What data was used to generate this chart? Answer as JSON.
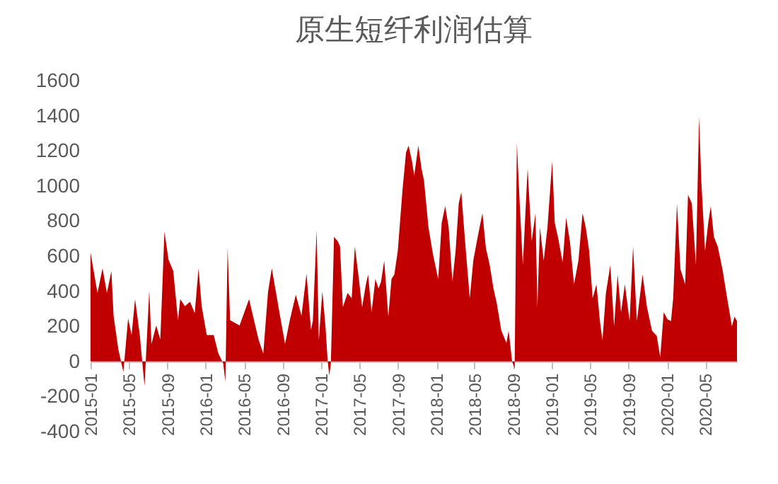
{
  "chart_data": {
    "type": "area",
    "title": "原生短纤利润估算",
    "x": [
      "2015-01-01",
      "2015-01-23",
      "2015-02-08",
      "2015-02-22",
      "2015-03-08",
      "2015-03-15",
      "2015-03-30",
      "2015-04-15",
      "2015-04-30",
      "2015-05-11",
      "2015-05-22",
      "2015-06-06",
      "2015-06-21",
      "2015-07-06",
      "2015-07-13",
      "2015-07-28",
      "2015-08-10",
      "2015-08-23",
      "2015-09-05",
      "2015-09-20",
      "2015-10-05",
      "2015-10-12",
      "2015-10-27",
      "2015-11-12",
      "2015-11-27",
      "2015-12-09",
      "2015-12-19",
      "2016-01-04",
      "2016-01-26",
      "2016-02-10",
      "2016-02-25",
      "2016-03-03",
      "2016-03-10",
      "2016-03-18",
      "2016-04-17",
      "2016-05-17",
      "2016-06-16",
      "2016-07-01",
      "2016-07-16",
      "2016-07-28",
      "2016-08-23",
      "2016-09-08",
      "2016-09-23",
      "2016-10-12",
      "2016-10-30",
      "2016-11-15",
      "2016-11-29",
      "2016-12-05",
      "2016-12-17",
      "2016-12-24",
      "2017-01-04",
      "2017-01-14",
      "2017-01-21",
      "2017-01-26",
      "2017-01-31",
      "2017-02-10",
      "2017-02-22",
      "2017-03-01",
      "2017-03-10",
      "2017-03-25",
      "2017-04-07",
      "2017-04-17",
      "2017-04-28",
      "2017-05-10",
      "2017-05-22",
      "2017-05-29",
      "2017-06-09",
      "2017-06-21",
      "2017-07-01",
      "2017-07-09",
      "2017-07-19",
      "2017-08-01",
      "2017-08-11",
      "2017-08-20",
      "2017-08-31",
      "2017-09-15",
      "2017-09-26",
      "2017-10-04",
      "2017-10-15",
      "2017-10-22",
      "2017-11-04",
      "2017-11-14",
      "2017-11-22",
      "2017-12-06",
      "2017-12-21",
      "2018-01-06",
      "2018-01-17",
      "2018-01-28",
      "2018-02-08",
      "2018-02-20",
      "2018-03-02",
      "2018-03-12",
      "2018-03-20",
      "2018-04-01",
      "2018-04-16",
      "2018-04-27",
      "2018-05-11",
      "2018-05-26",
      "2018-06-06",
      "2018-06-18",
      "2018-06-30",
      "2018-07-10",
      "2018-07-25",
      "2018-08-10",
      "2018-08-17",
      "2018-08-28",
      "2018-09-05",
      "2018-09-12",
      "2018-09-21",
      "2018-10-01",
      "2018-10-16",
      "2018-10-29",
      "2018-11-10",
      "2018-11-16",
      "2018-11-24",
      "2018-12-06",
      "2018-12-18",
      "2018-12-28",
      "2019-01-02",
      "2019-01-10",
      "2019-01-20",
      "2019-02-04",
      "2019-02-15",
      "2019-02-27",
      "2019-03-12",
      "2019-03-26",
      "2019-04-08",
      "2019-04-18",
      "2019-04-29",
      "2019-05-10",
      "2019-05-22",
      "2019-06-02",
      "2019-06-10",
      "2019-06-21",
      "2019-07-05",
      "2019-07-17",
      "2019-07-28",
      "2019-08-08",
      "2019-08-20",
      "2019-09-04",
      "2019-09-15",
      "2019-09-27",
      "2019-10-15",
      "2019-10-29",
      "2019-11-14",
      "2019-11-29",
      "2019-12-10",
      "2019-12-21",
      "2020-01-02",
      "2020-01-13",
      "2020-01-20",
      "2020-02-01",
      "2020-02-12",
      "2020-02-27",
      "2020-03-07",
      "2020-03-19",
      "2020-04-01",
      "2020-04-11",
      "2020-04-18",
      "2020-04-30",
      "2020-05-10",
      "2020-05-18",
      "2020-05-28",
      "2020-06-09",
      "2020-06-24",
      "2020-07-09",
      "2020-07-24",
      "2020-08-01",
      "2020-08-09"
    ],
    "series": [
      {
        "color": "#c00000",
        "values": [
          620,
          390,
          530,
          390,
          515,
          260,
          70,
          -60,
          245,
          150,
          355,
          150,
          -140,
          405,
          100,
          205,
          125,
          740,
          580,
          515,
          235,
          355,
          315,
          340,
          275,
          530,
          315,
          150,
          150,
          45,
          -10,
          -115,
          650,
          235,
          205,
          355,
          125,
          45,
          395,
          530,
          260,
          100,
          235,
          380,
          260,
          500,
          180,
          230,
          750,
          120,
          400,
          200,
          0,
          -80,
          -15,
          710,
          685,
          655,
          310,
          390,
          360,
          655,
          495,
          310,
          440,
          495,
          280,
          470,
          415,
          455,
          575,
          255,
          470,
          495,
          630,
          980,
          1190,
          1230,
          1140,
          1060,
          1230,
          1100,
          1030,
          765,
          605,
          470,
          790,
          885,
          765,
          455,
          630,
          900,
          965,
          685,
          360,
          575,
          710,
          845,
          645,
          550,
          415,
          335,
          175,
          105,
          175,
          0,
          -40,
          1245,
          900,
          550,
          1100,
          685,
          845,
          310,
          765,
          575,
          765,
          1020,
          1140,
          790,
          710,
          565,
          820,
          685,
          440,
          575,
          845,
          765,
          630,
          360,
          440,
          230,
          120,
          390,
          550,
          200,
          495,
          280,
          440,
          230,
          655,
          230,
          495,
          310,
          175,
          145,
          25,
          280,
          240,
          230,
          360,
          900,
          525,
          440,
          950,
          900,
          550,
          1395,
          1030,
          630,
          790,
          885,
          710,
          655,
          525,
          360,
          200,
          255,
          230
        ]
      }
    ],
    "xlim": [
      "2015-01-01",
      "2020-08-09"
    ],
    "xticks": [
      "2015-01",
      "2015-05",
      "2015-09",
      "2016-01",
      "2016-05",
      "2016-09",
      "2017-01",
      "2017-05",
      "2017-09",
      "2018-01",
      "2018-05",
      "2018-09",
      "2019-01",
      "2019-05",
      "2019-09",
      "2020-01",
      "2020-05"
    ],
    "ylim": [
      -400,
      1600
    ],
    "yticks": [
      -400,
      -200,
      0,
      200,
      400,
      600,
      800,
      1000,
      1200,
      1400,
      1600
    ]
  }
}
